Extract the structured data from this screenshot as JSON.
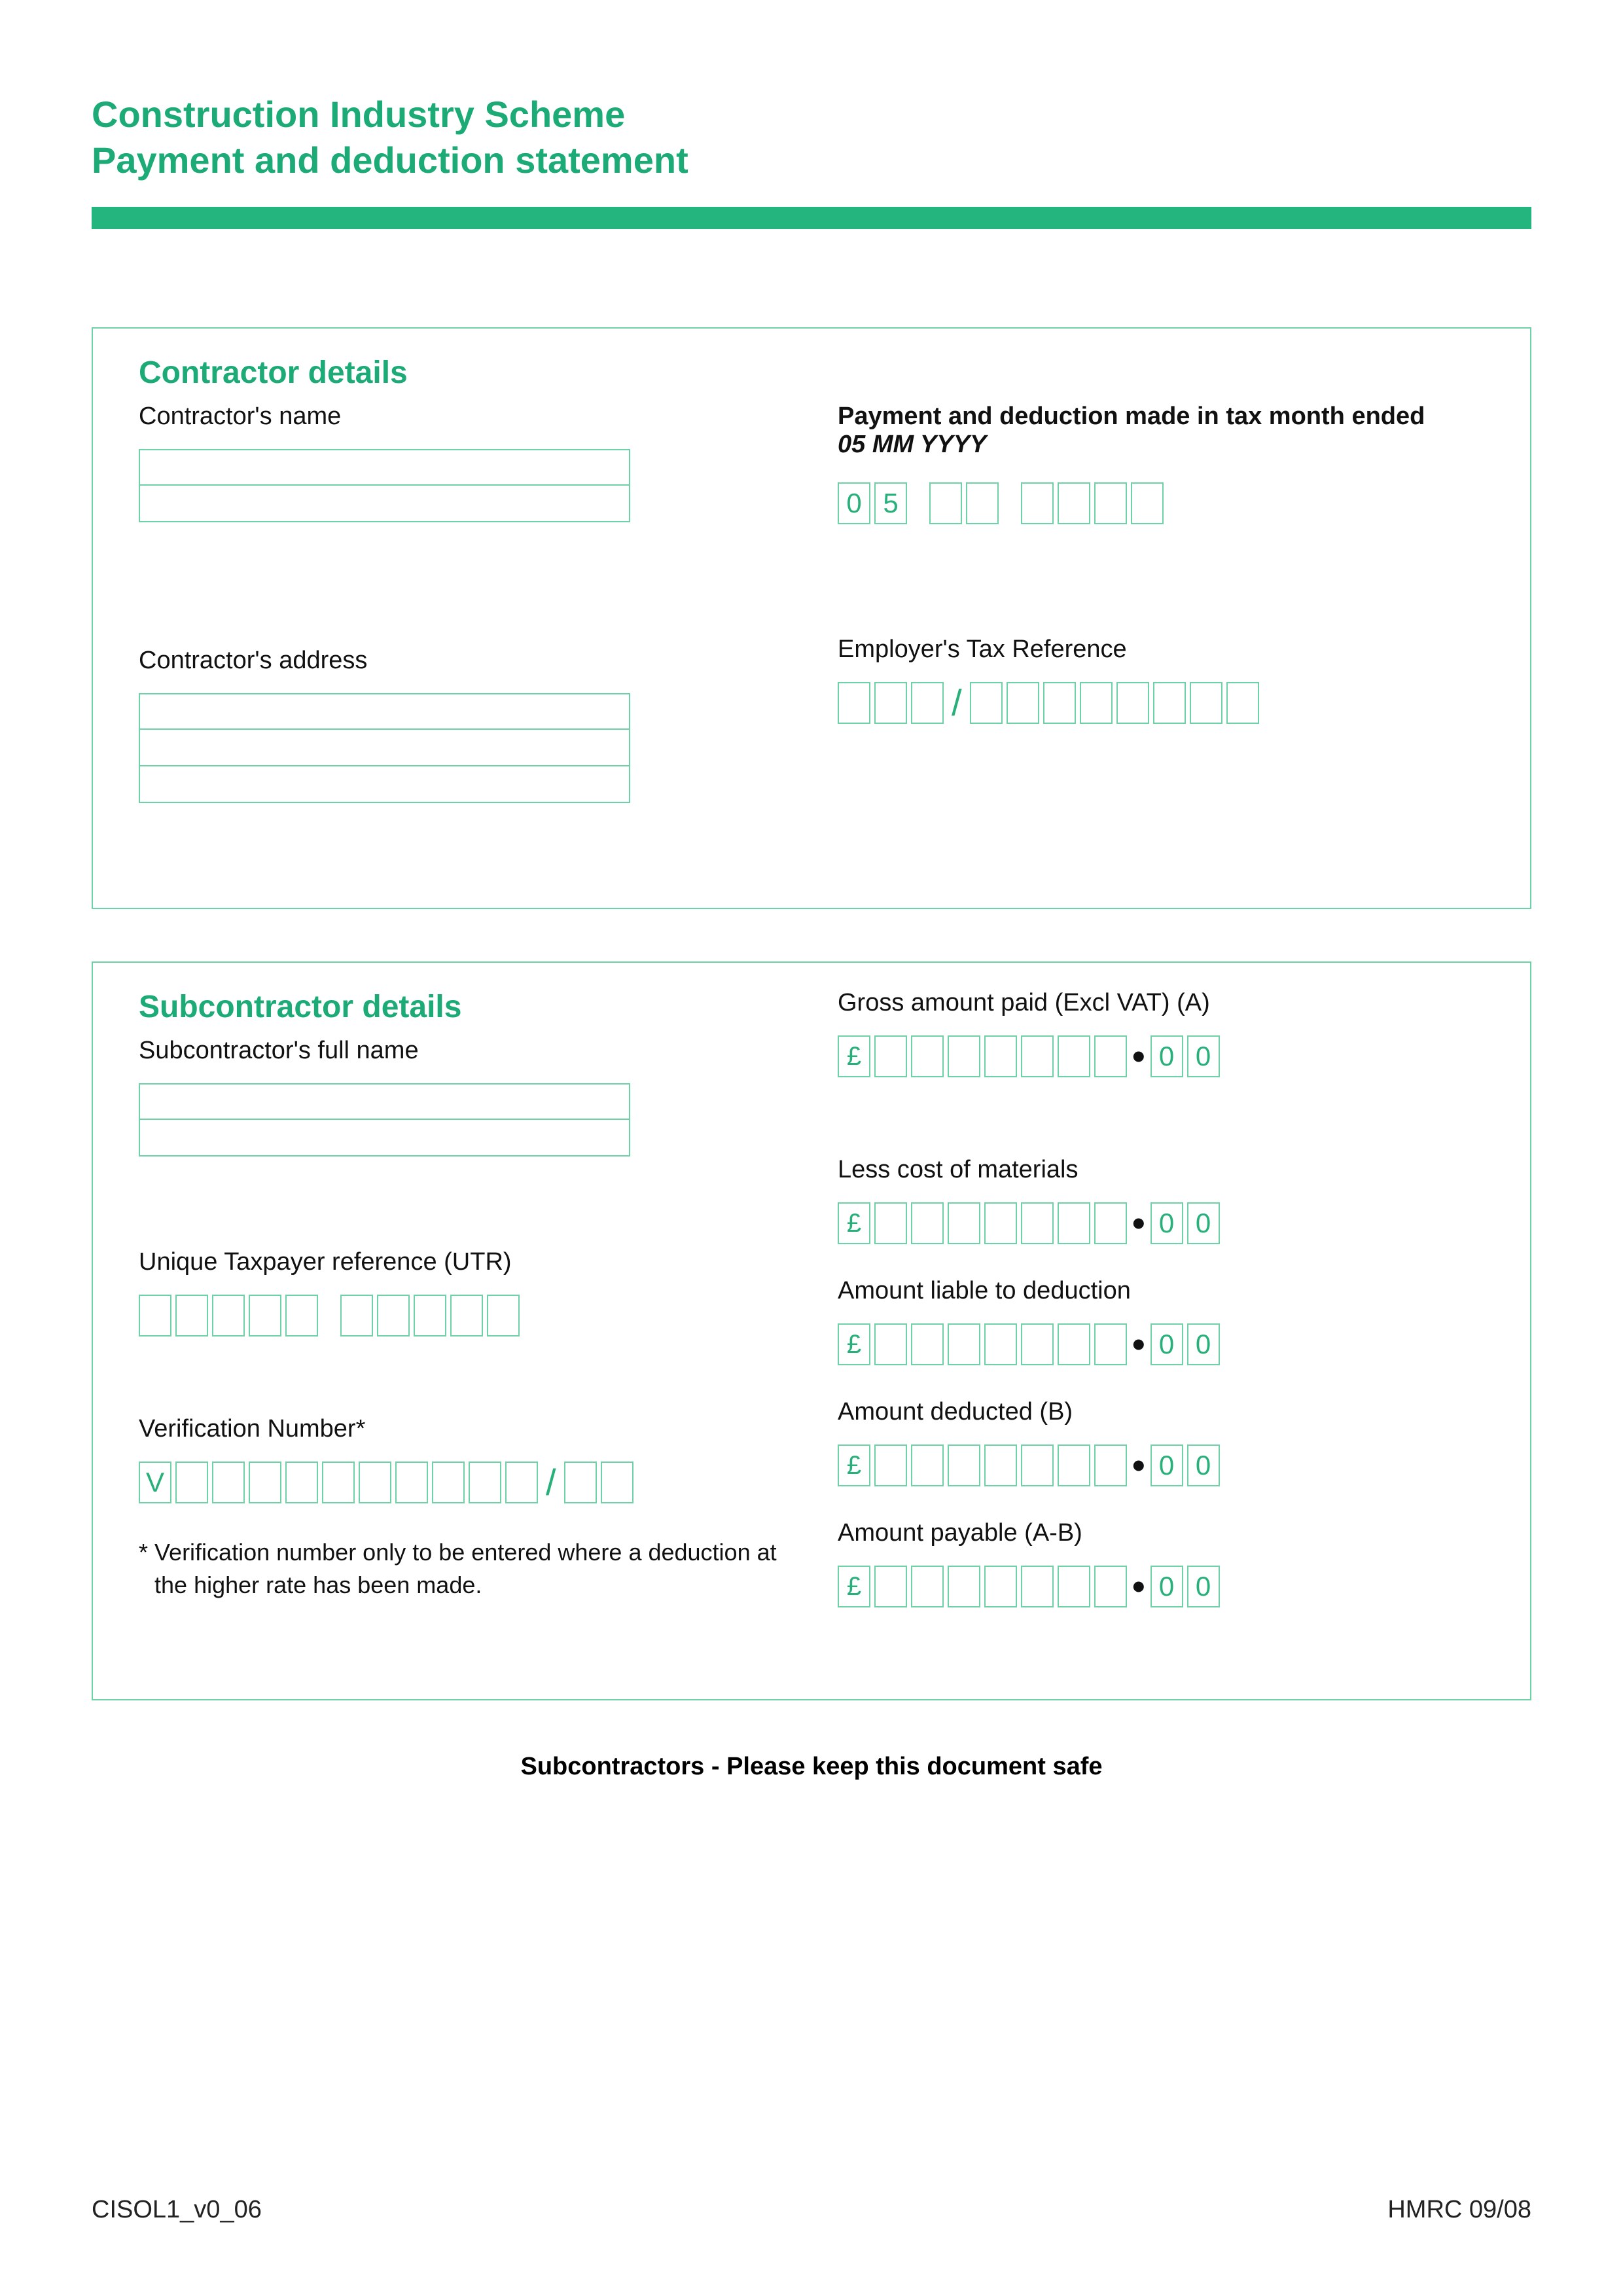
{
  "colors": {
    "accent": "#1caa77",
    "bar": "#24b47e",
    "box_border": "#6dd3a7",
    "filled_text": "#28b07b",
    "text": "#111111",
    "background": "#ffffff"
  },
  "title_line1": "Construction Industry Scheme",
  "title_line2": "Payment and deduction statement",
  "contractor": {
    "heading": "Contractor details",
    "name_label": "Contractor's name",
    "name_lines": 2,
    "address_label": "Contractor's address",
    "address_lines": 3,
    "payment_label": "Payment and deduction made in tax month ended",
    "payment_format": "05 MM YYYY",
    "date_cells": {
      "day": [
        "0",
        "5"
      ],
      "month_blanks": 2,
      "year_blanks": 4
    },
    "etr_label": "Employer's Tax Reference",
    "etr": {
      "part1_blanks": 3,
      "separator": "/",
      "part2_blanks": 8
    }
  },
  "subcontractor": {
    "heading": "Subcontractor details",
    "name_label": "Subcontractor's full name",
    "name_lines": 2,
    "utr_label": "Unique Taxpayer reference (UTR)",
    "utr": {
      "group1_blanks": 5,
      "group2_blanks": 5
    },
    "verification_label": "Verification Number*",
    "verification": {
      "prefix": "V",
      "mid_blanks": 10,
      "separator": "/",
      "tail_blanks": 2
    },
    "note_marker": "*",
    "note_text": "Verification number only to be entered where a deduction at the higher rate has been made."
  },
  "amounts": {
    "currency": "£",
    "int_blanks": 7,
    "decimal": [
      "0",
      "0"
    ],
    "gross_label": "Gross amount paid (Excl VAT) (A)",
    "materials_label": "Less cost of materials",
    "liable_label": "Amount liable to deduction",
    "deducted_label": "Amount deducted (B)",
    "payable_label": "Amount payable (A-B)"
  },
  "footer_msg": "Subcontractors - Please keep this document safe",
  "form_ref": "CISOL1_v0_06",
  "issuer": "HMRC 09/08"
}
